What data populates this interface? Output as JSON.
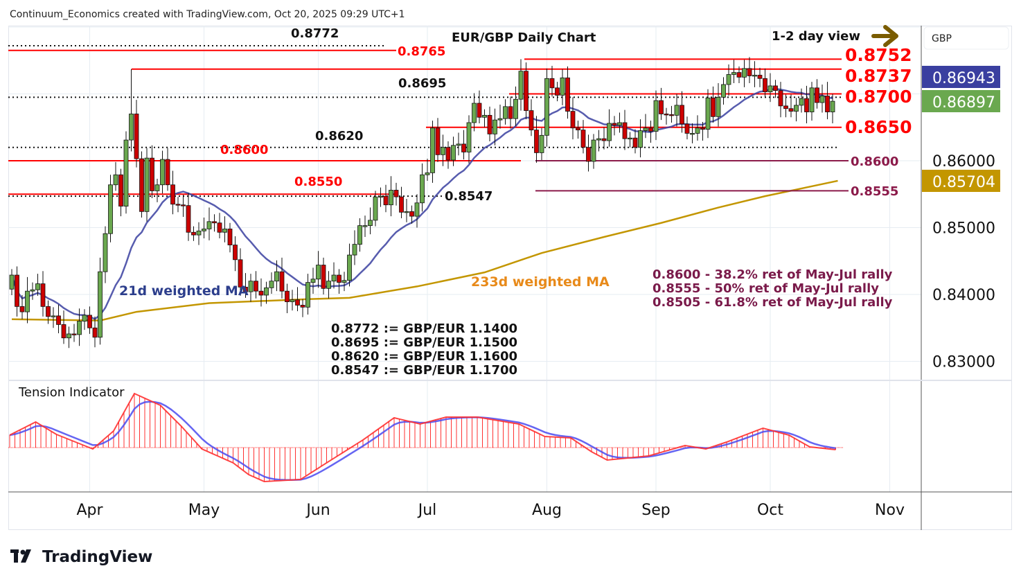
{
  "header": {
    "attribution": "Continuum_Economics created with TradingView.com, Oct 20, 2025 09:29 UTC+1"
  },
  "footer": {
    "logo_text": "TradingView"
  },
  "colors": {
    "up": "#6aa84f",
    "down": "#cc0000",
    "ma21": "#3a3fa0",
    "ma233": "#c39600",
    "level_red": "#ff0000",
    "level_purple": "#8b1a4a",
    "arrow": "#7a5c00",
    "tension_red": "#ff3030",
    "tension_blue": "#4a4af0"
  },
  "chart_data": {
    "type": "candlestick",
    "title": "EUR/GBP Daily Chart",
    "view_note": "1-2 day view",
    "currency": "GBP",
    "ylim": [
      0.8265,
      0.88
    ],
    "grid": true,
    "y_ticks": [
      "0.86000",
      "0.85000",
      "0.84000",
      "0.83000"
    ],
    "y_tick_values": [
      0.86,
      0.85,
      0.84,
      0.83
    ],
    "x_ticks": [
      {
        "label": "Apr",
        "index": 15
      },
      {
        "label": "May",
        "index": 37
      },
      {
        "label": "Jun",
        "index": 59
      },
      {
        "label": "Jul",
        "index": 80
      },
      {
        "label": "Aug",
        "index": 103
      },
      {
        "label": "Sep",
        "index": 124
      },
      {
        "label": "Oct",
        "index": 146
      },
      {
        "label": "Nov",
        "index": 169
      }
    ],
    "first_open": 0.8408,
    "closes": [
      0.8429,
      0.8382,
      0.8374,
      0.8405,
      0.8407,
      0.8416,
      0.8382,
      0.8367,
      0.8368,
      0.8355,
      0.8335,
      0.8341,
      0.834,
      0.836,
      0.8369,
      0.835,
      0.8336,
      0.8434,
      0.8491,
      0.8564,
      0.8579,
      0.8532,
      0.8631,
      0.867,
      0.8603,
      0.8524,
      0.8604,
      0.8555,
      0.8564,
      0.8602,
      0.8564,
      0.8535,
      0.8534,
      0.8533,
      0.8493,
      0.8489,
      0.8495,
      0.8498,
      0.8509,
      0.8507,
      0.8493,
      0.8498,
      0.8474,
      0.8452,
      0.8411,
      0.8404,
      0.842,
      0.8405,
      0.8399,
      0.841,
      0.842,
      0.8434,
      0.8405,
      0.8389,
      0.8392,
      0.8384,
      0.8381,
      0.8418,
      0.8423,
      0.8444,
      0.8409,
      0.842,
      0.8429,
      0.8418,
      0.8421,
      0.8459,
      0.8475,
      0.8503,
      0.8503,
      0.8511,
      0.8546,
      0.8547,
      0.8534,
      0.8556,
      0.8546,
      0.8523,
      0.8524,
      0.8517,
      0.8537,
      0.8579,
      0.8582,
      0.8649,
      0.8609,
      0.862,
      0.8601,
      0.8623,
      0.8625,
      0.8613,
      0.8657,
      0.8686,
      0.8665,
      0.8668,
      0.864,
      0.8661,
      0.8663,
      0.8681,
      0.8663,
      0.8692,
      0.8734,
      0.8675,
      0.8646,
      0.8612,
      0.8638,
      0.8723,
      0.8709,
      0.8698,
      0.8724,
      0.8674,
      0.8649,
      0.8646,
      0.862,
      0.8599,
      0.8631,
      0.8633,
      0.863,
      0.8656,
      0.8653,
      0.8657,
      0.8633,
      0.8634,
      0.862,
      0.8645,
      0.8649,
      0.8644,
      0.869,
      0.867,
      0.8669,
      0.8668,
      0.8683,
      0.8655,
      0.8641,
      0.8641,
      0.8649,
      0.8647,
      0.8694,
      0.8666,
      0.8695,
      0.8714,
      0.8729,
      0.8732,
      0.8725,
      0.8738,
      0.8727,
      0.8728,
      0.8723,
      0.8703,
      0.8712,
      0.8705,
      0.8682,
      0.8678,
      0.8674,
      0.8683,
      0.8693,
      0.8673,
      0.8709,
      0.8687,
      0.8697,
      0.8673,
      0.8689
    ],
    "peaks": [
      [
        23,
        0.8737
      ],
      [
        98,
        0.8752
      ]
    ],
    "ma233": {
      "label": "233d weighted MA",
      "points": [
        [
          0,
          0.8363
        ],
        [
          17,
          0.8361
        ],
        [
          24,
          0.8374
        ],
        [
          38,
          0.8387
        ],
        [
          57,
          0.8393
        ],
        [
          65,
          0.8395
        ],
        [
          78,
          0.8412
        ],
        [
          91,
          0.8433
        ],
        [
          102,
          0.8462
        ],
        [
          114,
          0.8486
        ],
        [
          125,
          0.8507
        ],
        [
          136,
          0.853
        ],
        [
          145,
          0.8547
        ],
        [
          159,
          0.857
        ]
      ]
    },
    "ma21": {
      "label": "21d weighted MA",
      "period": 21
    },
    "price_badges": [
      {
        "value": "0.86943",
        "color": "#3a3fa0"
      },
      {
        "value": "0.86897",
        "color": "#6aa84f"
      },
      {
        "value": "0.85704",
        "color": "#c39600"
      }
    ],
    "levels": [
      {
        "id": "l8772",
        "price": 0.8772,
        "label": "0.8772",
        "style": "black-dotted"
      },
      {
        "id": "l8765",
        "price": 0.8765,
        "label": "0.8765",
        "style": "red"
      },
      {
        "id": "l8752",
        "price": 0.8752,
        "label": "0.8752",
        "style": "red-big"
      },
      {
        "id": "l8737",
        "price": 0.8737,
        "label": "0.8737",
        "style": "red-big"
      },
      {
        "id": "l8700",
        "price": 0.87,
        "label": "0.8700",
        "style": "red-big"
      },
      {
        "id": "l8695",
        "price": 0.8695,
        "label": "0.8695",
        "style": "black-dotted"
      },
      {
        "id": "l8650",
        "price": 0.865,
        "label": "0.8650",
        "style": "red-big"
      },
      {
        "id": "l8620",
        "price": 0.862,
        "label": "0.8620",
        "style": "black-dotted"
      },
      {
        "id": "l8600a",
        "price": 0.86,
        "label": "0.8600",
        "style": "red"
      },
      {
        "id": "l8600b",
        "price": 0.86,
        "label": "0.8600",
        "style": "purple"
      },
      {
        "id": "l8550",
        "price": 0.855,
        "label": "0.8550",
        "style": "red"
      },
      {
        "id": "l8547",
        "price": 0.8547,
        "label": "0.8547",
        "style": "black-dotted"
      },
      {
        "id": "l8555",
        "price": 0.8555,
        "label": "0.8555",
        "style": "purple"
      }
    ],
    "retracement_notes": [
      "0.8600 - 38.2% ret of May-Jul rally",
      "0.8555 - 50% ret of May-Jul rally",
      "0.8505 - 61.8% ret of May-Jul rally"
    ],
    "conversion_notes": [
      "0.8772 := GBP/EUR 1.1400",
      "0.8695 := GBP/EUR 1.1500",
      "0.8620 := GBP/EUR 1.1600",
      "0.8547 := GBP/EUR 1.1700"
    ],
    "tension": {
      "label": "Tension Indicator",
      "points": [
        [
          0,
          1.8
        ],
        [
          5,
          3.7
        ],
        [
          9,
          1.9
        ],
        [
          16,
          -0.2
        ],
        [
          20,
          2.4
        ],
        [
          24,
          7.8
        ],
        [
          29,
          6.1
        ],
        [
          33,
          3.1
        ],
        [
          37,
          -0.2
        ],
        [
          43,
          -2.2
        ],
        [
          46,
          -3.9
        ],
        [
          49,
          -4.9
        ],
        [
          56,
          -4.6
        ],
        [
          61,
          -2.2
        ],
        [
          68,
          1.1
        ],
        [
          74,
          4.3
        ],
        [
          79,
          3.4
        ],
        [
          84,
          4.4
        ],
        [
          90,
          4.4
        ],
        [
          98,
          3.4
        ],
        [
          103,
          1.6
        ],
        [
          108,
          1.4
        ],
        [
          112,
          -0.6
        ],
        [
          115,
          -1.8
        ],
        [
          123,
          -1.2
        ],
        [
          130,
          0.3
        ],
        [
          134,
          -0.2
        ],
        [
          138,
          0.8
        ],
        [
          145,
          2.8
        ],
        [
          150,
          1.8
        ],
        [
          154,
          0.1
        ],
        [
          159,
          -0.3
        ]
      ]
    }
  }
}
